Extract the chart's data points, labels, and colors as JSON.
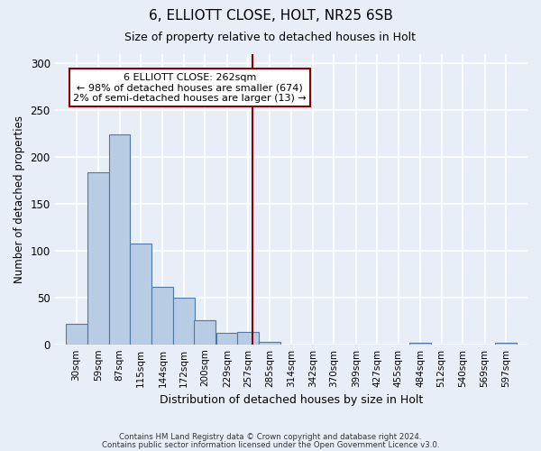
{
  "title": "6, ELLIOTT CLOSE, HOLT, NR25 6SB",
  "subtitle": "Size of property relative to detached houses in Holt",
  "xlabel": "Distribution of detached houses by size in Holt",
  "ylabel": "Number of detached properties",
  "bar_values": [
    22,
    184,
    224,
    108,
    61,
    50,
    26,
    12,
    13,
    3,
    0,
    0,
    0,
    0,
    0,
    0,
    2,
    0,
    0,
    0,
    2
  ],
  "bin_labels": [
    "30sqm",
    "59sqm",
    "87sqm",
    "115sqm",
    "144sqm",
    "172sqm",
    "200sqm",
    "229sqm",
    "257sqm",
    "285sqm",
    "314sqm",
    "342sqm",
    "370sqm",
    "399sqm",
    "427sqm",
    "455sqm",
    "484sqm",
    "512sqm",
    "540sqm",
    "569sqm",
    "597sqm"
  ],
  "bar_color": "#b8cce4",
  "bar_edge_color": "#4e79a7",
  "ylim": [
    0,
    310
  ],
  "yticks": [
    0,
    50,
    100,
    150,
    200,
    250,
    300
  ],
  "property_sqm": 262,
  "annotation_title": "6 ELLIOTT CLOSE: 262sqm",
  "annotation_line1": "← 98% of detached houses are smaller (674)",
  "annotation_line2": "2% of semi-detached houses are larger (13) →",
  "annotation_box_facecolor": "#ffffff",
  "annotation_box_edgecolor": "#8b0000",
  "vline_color": "#8b0000",
  "footer1": "Contains HM Land Registry data © Crown copyright and database right 2024.",
  "footer2": "Contains public sector information licensed under the Open Government Licence v3.0.",
  "background_color": "#e8eef8",
  "grid_color": "#ffffff"
}
